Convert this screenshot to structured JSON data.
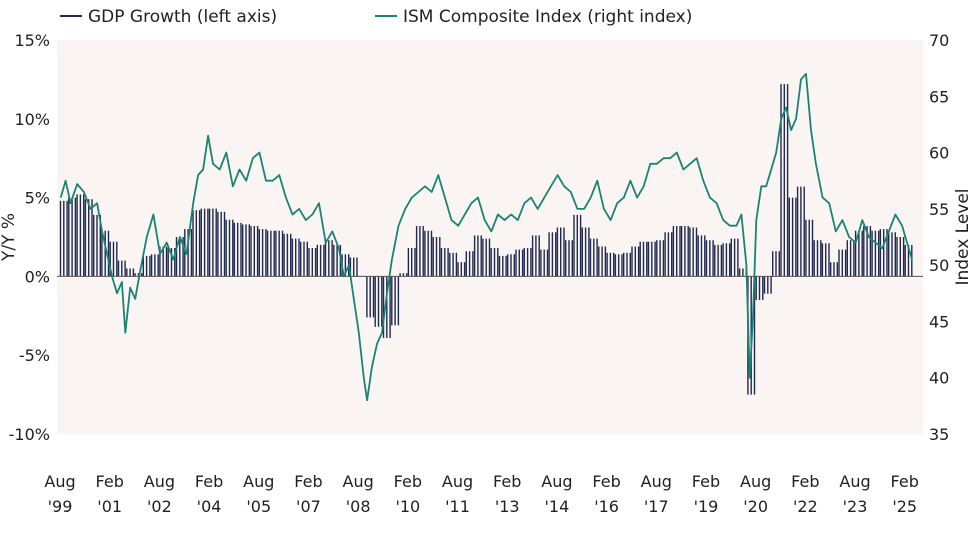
{
  "chart_data": {
    "type": "bar+line",
    "title": "",
    "legend": [
      {
        "label": "GDP Growth (left axis)",
        "color": "#1f2a4e"
      },
      {
        "label": "ISM Composite Index (right index)",
        "color": "#1a8472"
      }
    ],
    "left_axis": {
      "label": "Y/Y %",
      "min": -10,
      "max": 15,
      "ticks": [
        "15%",
        "10%",
        "5%",
        "0%",
        "-5%",
        "-10%"
      ],
      "tick_values": [
        15,
        10,
        5,
        0,
        -5,
        -10
      ]
    },
    "right_axis": {
      "label": "Index Level",
      "min": 35,
      "max": 70,
      "ticks": [
        "70",
        "65",
        "60",
        "55",
        "50",
        "45",
        "40",
        "35"
      ],
      "tick_values": [
        70,
        65,
        60,
        55,
        50,
        45,
        40,
        35
      ]
    },
    "x_axis": {
      "start_year": 1999.58,
      "end_year": 2025.3,
      "labels": [
        {
          "month": "Aug",
          "year": "'99",
          "pos": 1999.58
        },
        {
          "month": "Feb",
          "year": "'01",
          "pos": 2001.08
        },
        {
          "month": "Aug",
          "year": "'02",
          "pos": 2002.58
        },
        {
          "month": "Feb",
          "year": "'04",
          "pos": 2004.08
        },
        {
          "month": "Aug",
          "year": "'05",
          "pos": 2005.58
        },
        {
          "month": "Feb",
          "year": "'07",
          "pos": 2007.08
        },
        {
          "month": "Aug",
          "year": "'08",
          "pos": 2008.58
        },
        {
          "month": "Feb",
          "year": "'10",
          "pos": 2010.08
        },
        {
          "month": "Aug",
          "year": "'11",
          "pos": 2011.58
        },
        {
          "month": "Feb",
          "year": "'13",
          "pos": 2013.08
        },
        {
          "month": "Aug",
          "year": "'14",
          "pos": 2014.58
        },
        {
          "month": "Feb",
          "year": "'16",
          "pos": 2016.08
        },
        {
          "month": "Aug",
          "year": "'17",
          "pos": 2017.58
        },
        {
          "month": "Feb",
          "year": "'19",
          "pos": 2019.08
        },
        {
          "month": "Aug",
          "year": "'20",
          "pos": 2020.58
        },
        {
          "month": "Feb",
          "year": "'22",
          "pos": 2022.08
        },
        {
          "month": "Aug",
          "year": "'23",
          "pos": 2023.58
        },
        {
          "month": "Feb",
          "year": "'25",
          "pos": 2025.08
        }
      ]
    },
    "gdp_series": {
      "name": "GDP Growth (left axis)",
      "x": [
        1999.7,
        1999.95,
        2000.2,
        2000.45,
        2000.7,
        2000.95,
        2001.2,
        2001.45,
        2001.7,
        2001.95,
        2002.2,
        2002.45,
        2002.7,
        2002.95,
        2003.2,
        2003.45,
        2003.7,
        2003.95,
        2004.2,
        2004.45,
        2004.7,
        2004.95,
        2005.2,
        2005.45,
        2005.7,
        2005.95,
        2006.2,
        2006.45,
        2006.7,
        2006.95,
        2007.2,
        2007.45,
        2007.7,
        2007.95,
        2008.2,
        2008.45,
        2008.7,
        2008.95,
        2009.2,
        2009.45,
        2009.7,
        2009.95,
        2010.2,
        2010.45,
        2010.7,
        2010.95,
        2011.2,
        2011.45,
        2011.7,
        2011.95,
        2012.2,
        2012.45,
        2012.7,
        2012.95,
        2013.2,
        2013.45,
        2013.7,
        2013.95,
        2014.2,
        2014.45,
        2014.7,
        2014.95,
        2015.2,
        2015.45,
        2015.7,
        2015.95,
        2016.2,
        2016.45,
        2016.7,
        2016.95,
        2017.2,
        2017.45,
        2017.7,
        2017.95,
        2018.2,
        2018.45,
        2018.7,
        2018.95,
        2019.2,
        2019.45,
        2019.7,
        2019.95,
        2020.2,
        2020.45,
        2020.7,
        2020.95,
        2021.2,
        2021.45,
        2021.7,
        2021.95,
        2022.2,
        2022.45,
        2022.7,
        2022.95,
        2023.2,
        2023.45,
        2023.7,
        2023.95,
        2024.2,
        2024.45,
        2024.7,
        2024.95,
        2025.2
      ],
      "values": [
        4.8,
        5.0,
        5.2,
        4.9,
        3.9,
        2.9,
        2.2,
        1.0,
        0.5,
        0.2,
        1.3,
        1.4,
        1.9,
        1.8,
        2.5,
        3.0,
        4.2,
        4.3,
        4.3,
        4.1,
        3.6,
        3.4,
        3.3,
        3.2,
        3.0,
        2.9,
        2.9,
        2.7,
        2.4,
        2.2,
        1.8,
        2.0,
        2.3,
        2.0,
        1.4,
        1.2,
        0.0,
        -2.6,
        -3.2,
        -3.9,
        -3.1,
        0.2,
        1.8,
        3.2,
        2.9,
        2.5,
        1.8,
        1.5,
        0.9,
        1.6,
        2.6,
        2.4,
        1.8,
        1.3,
        1.4,
        1.7,
        1.8,
        2.6,
        1.7,
        2.8,
        3.1,
        2.3,
        3.9,
        3.1,
        2.4,
        1.9,
        1.5,
        1.4,
        1.5,
        1.9,
        2.2,
        2.2,
        2.3,
        2.8,
        3.2,
        3.2,
        3.1,
        2.6,
        2.3,
        2.0,
        2.1,
        2.4,
        0.5,
        -7.5,
        -1.5,
        -1.1,
        1.6,
        12.2,
        5.0,
        5.7,
        3.6,
        2.3,
        2.1,
        0.9,
        1.7,
        2.3,
        2.9,
        3.2,
        2.9,
        3.0,
        2.8,
        2.5,
        2.0
      ]
    },
    "ism_series": {
      "name": "ISM Composite Index (right index)",
      "x": [
        1999.6,
        1999.75,
        1999.9,
        2000.1,
        2000.3,
        2000.5,
        2000.7,
        2000.85,
        2001.0,
        2001.15,
        2001.3,
        2001.45,
        2001.55,
        2001.7,
        2001.85,
        2002.0,
        2002.2,
        2002.4,
        2002.6,
        2002.8,
        2003.0,
        2003.2,
        2003.4,
        2003.6,
        2003.75,
        2003.9,
        2004.05,
        2004.2,
        2004.4,
        2004.6,
        2004.8,
        2005.0,
        2005.2,
        2005.4,
        2005.6,
        2005.8,
        2006.0,
        2006.2,
        2006.4,
        2006.6,
        2006.8,
        2007.0,
        2007.2,
        2007.4,
        2007.6,
        2007.8,
        2008.0,
        2008.15,
        2008.3,
        2008.45,
        2008.6,
        2008.75,
        2008.85,
        2009.0,
        2009.15,
        2009.3,
        2009.45,
        2009.6,
        2009.8,
        2010.0,
        2010.2,
        2010.4,
        2010.6,
        2010.8,
        2011.0,
        2011.2,
        2011.4,
        2011.6,
        2011.8,
        2012.0,
        2012.2,
        2012.4,
        2012.6,
        2012.8,
        2013.0,
        2013.2,
        2013.4,
        2013.6,
        2013.8,
        2014.0,
        2014.2,
        2014.4,
        2014.6,
        2014.8,
        2015.0,
        2015.2,
        2015.4,
        2015.6,
        2015.8,
        2016.0,
        2016.2,
        2016.4,
        2016.6,
        2016.8,
        2017.0,
        2017.2,
        2017.4,
        2017.6,
        2017.8,
        2018.0,
        2018.2,
        2018.4,
        2018.6,
        2018.8,
        2019.0,
        2019.2,
        2019.4,
        2019.6,
        2019.8,
        2020.0,
        2020.15,
        2020.3,
        2020.4,
        2020.5,
        2020.6,
        2020.75,
        2020.9,
        2021.05,
        2021.2,
        2021.35,
        2021.5,
        2021.65,
        2021.8,
        2021.95,
        2022.1,
        2022.25,
        2022.4,
        2022.6,
        2022.8,
        2023.0,
        2023.2,
        2023.4,
        2023.6,
        2023.8,
        2024.0,
        2024.2,
        2024.4,
        2024.6,
        2024.8,
        2025.0,
        2025.15,
        2025.3
      ],
      "values": [
        56.0,
        57.5,
        55.5,
        57.2,
        56.5,
        55.0,
        55.5,
        53.0,
        51.0,
        49.0,
        47.5,
        48.5,
        44.0,
        48.0,
        47.0,
        49.5,
        52.5,
        54.5,
        51.0,
        52.0,
        50.5,
        52.5,
        51.0,
        55.5,
        58.0,
        58.5,
        61.5,
        59.0,
        58.5,
        60.0,
        57.0,
        58.5,
        57.5,
        59.5,
        60.0,
        57.5,
        57.5,
        58.0,
        56.0,
        54.5,
        55.0,
        54.0,
        54.5,
        55.5,
        52.0,
        53.0,
        51.5,
        49.0,
        50.0,
        47.0,
        44.0,
        40.0,
        38.0,
        41.0,
        43.0,
        44.0,
        47.5,
        50.5,
        53.5,
        55.0,
        56.0,
        56.5,
        57.0,
        56.5,
        58.0,
        56.0,
        54.0,
        53.5,
        54.5,
        55.5,
        56.0,
        54.0,
        53.0,
        54.5,
        54.0,
        54.5,
        54.0,
        55.5,
        56.0,
        55.0,
        56.0,
        57.0,
        58.0,
        57.0,
        56.5,
        55.0,
        55.0,
        56.0,
        57.5,
        55.0,
        54.0,
        55.5,
        56.0,
        57.5,
        56.0,
        57.0,
        59.0,
        59.0,
        59.5,
        59.5,
        60.0,
        58.5,
        59.0,
        59.5,
        57.5,
        56.0,
        55.5,
        54.0,
        53.5,
        53.5,
        54.5,
        50.0,
        40.0,
        45.5,
        54.0,
        57.0,
        57.0,
        58.5,
        60.0,
        63.0,
        64.0,
        62.0,
        63.0,
        66.5,
        67.0,
        62.0,
        59.0,
        56.0,
        55.5,
        53.0,
        54.0,
        52.5,
        52.0,
        54.0,
        52.5,
        52.0,
        51.5,
        53.0,
        54.5,
        53.5,
        52.0,
        50.5
      ]
    }
  }
}
